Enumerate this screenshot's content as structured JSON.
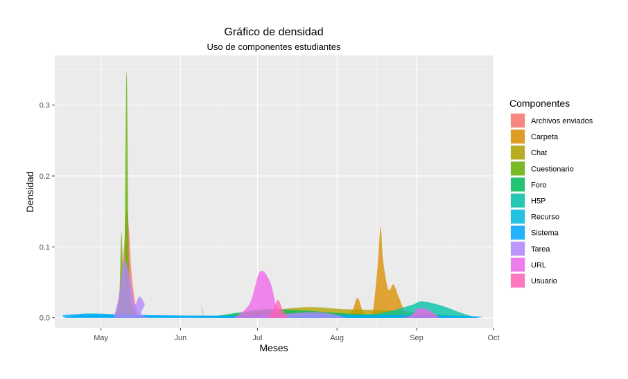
{
  "chart_data": {
    "type": "area",
    "title": "Gráfico de densidad",
    "subtitle": "Uso de componentes estudiantes",
    "xlabel": "Meses",
    "ylabel": "Densidad",
    "x_ticks": [
      "May",
      "Jun",
      "Jul",
      "Aug",
      "Sep",
      "Oct"
    ],
    "y_ticks": [
      "0.0",
      "0.1",
      "0.2",
      "0.3"
    ],
    "xlim": [
      "2020-04-13",
      "2020-10-01"
    ],
    "ylim": [
      -0.014,
      0.37
    ],
    "grid": true,
    "legend": {
      "title": "Componentes",
      "placement": "right"
    },
    "series": [
      {
        "name": "Archivos enviados",
        "color": "#F8766D",
        "points": [
          [
            "2020-05-06",
            0
          ],
          [
            "2020-05-08",
            0.03
          ],
          [
            "2020-05-10",
            0.1
          ],
          [
            "2020-05-11",
            0.15
          ],
          [
            "2020-05-12",
            0.12
          ],
          [
            "2020-05-13",
            0.06
          ],
          [
            "2020-05-15",
            0.01
          ],
          [
            "2020-05-18",
            0
          ]
        ]
      },
      {
        "name": "Carpeta",
        "color": "#DB8E00",
        "points": [
          [
            "2020-08-05",
            0
          ],
          [
            "2020-08-07",
            0.01
          ],
          [
            "2020-08-09",
            0.028
          ],
          [
            "2020-08-11",
            0.01
          ],
          [
            "2020-08-13",
            0
          ],
          [
            "2020-08-15",
            0.01
          ],
          [
            "2020-08-17",
            0.08
          ],
          [
            "2020-08-18",
            0.128
          ],
          [
            "2020-08-19",
            0.08
          ],
          [
            "2020-08-21",
            0.04
          ],
          [
            "2020-08-23",
            0.047
          ],
          [
            "2020-08-25",
            0.03
          ],
          [
            "2020-08-28",
            0.005
          ],
          [
            "2020-08-31",
            0
          ]
        ]
      },
      {
        "name": "Chat",
        "color": "#AEA200",
        "points": [
          [
            "2020-06-12",
            0
          ],
          [
            "2020-07-01",
            0.008
          ],
          [
            "2020-07-20",
            0.015
          ],
          [
            "2020-08-05",
            0.012
          ],
          [
            "2020-08-25",
            0.01
          ],
          [
            "2020-09-15",
            0.003
          ],
          [
            "2020-09-25",
            0
          ]
        ]
      },
      {
        "name": "Cuestionario",
        "color": "#64B200",
        "points": [
          [
            "2020-05-06",
            0
          ],
          [
            "2020-05-08",
            0.02
          ],
          [
            "2020-05-09",
            0.12
          ],
          [
            "2020-05-10",
            0.04
          ],
          [
            "2020-05-11",
            0.347
          ],
          [
            "2020-05-12",
            0.06
          ],
          [
            "2020-05-14",
            0.01
          ],
          [
            "2020-05-18",
            0
          ],
          [
            "2020-06-08",
            0
          ],
          [
            "2020-06-09",
            0.018
          ],
          [
            "2020-06-10",
            0
          ]
        ]
      },
      {
        "name": "Foro",
        "color": "#00BD5C",
        "points": [
          [
            "2020-06-10",
            0
          ],
          [
            "2020-06-25",
            0.008
          ],
          [
            "2020-07-05",
            0.012
          ],
          [
            "2020-07-20",
            0.01
          ],
          [
            "2020-08-05",
            0.006
          ],
          [
            "2020-08-20",
            0.004
          ],
          [
            "2020-09-10",
            0
          ]
        ]
      },
      {
        "name": "H5P",
        "color": "#00C1A7",
        "points": [
          [
            "2020-08-05",
            0
          ],
          [
            "2020-08-20",
            0.008
          ],
          [
            "2020-08-30",
            0.018
          ],
          [
            "2020-09-03",
            0.023
          ],
          [
            "2020-09-10",
            0.018
          ],
          [
            "2020-09-20",
            0.005
          ],
          [
            "2020-09-25",
            0
          ]
        ]
      },
      {
        "name": "Recurso",
        "color": "#00BADE",
        "points": [
          [
            "2020-04-17",
            0
          ],
          [
            "2020-04-25",
            0.006
          ],
          [
            "2020-05-15",
            0.004
          ],
          [
            "2020-06-15",
            0.003
          ],
          [
            "2020-07-15",
            0.004
          ],
          [
            "2020-08-15",
            0.004
          ],
          [
            "2020-09-15",
            0.003
          ],
          [
            "2020-09-25",
            0
          ]
        ]
      },
      {
        "name": "Sistema",
        "color": "#00A6FF",
        "points": [
          [
            "2020-04-17",
            0
          ],
          [
            "2020-04-17",
            0.004
          ],
          [
            "2020-05-01",
            0.005
          ],
          [
            "2020-06-01",
            0.003
          ],
          [
            "2020-07-01",
            0.003
          ],
          [
            "2020-08-01",
            0.003
          ],
          [
            "2020-09-01",
            0.003
          ],
          [
            "2020-09-25",
            0.002
          ],
          [
            "2020-09-25",
            0
          ]
        ]
      },
      {
        "name": "Tarea",
        "color": "#B385FF",
        "points": [
          [
            "2020-05-06",
            0
          ],
          [
            "2020-05-08",
            0.03
          ],
          [
            "2020-05-10",
            0.08
          ],
          [
            "2020-05-12",
            0.06
          ],
          [
            "2020-05-14",
            0.02
          ],
          [
            "2020-05-16",
            0.03
          ],
          [
            "2020-05-18",
            0.02
          ],
          [
            "2020-05-20",
            0
          ],
          [
            "2020-06-25",
            0
          ],
          [
            "2020-07-10",
            0.005
          ],
          [
            "2020-07-25",
            0.008
          ],
          [
            "2020-08-05",
            0
          ]
        ]
      },
      {
        "name": "URL",
        "color": "#EF67EB",
        "points": [
          [
            "2020-06-22",
            0
          ],
          [
            "2020-06-28",
            0.02
          ],
          [
            "2020-07-02",
            0.065
          ],
          [
            "2020-07-06",
            0.05
          ],
          [
            "2020-07-09",
            0.01
          ],
          [
            "2020-07-14",
            0
          ],
          [
            "2020-08-25",
            0
          ],
          [
            "2020-09-01",
            0.012
          ],
          [
            "2020-09-05",
            0.012
          ],
          [
            "2020-09-10",
            0
          ]
        ]
      },
      {
        "name": "Usuario",
        "color": "#FF63B6",
        "points": [
          [
            "2020-07-05",
            0
          ],
          [
            "2020-07-07",
            0.01
          ],
          [
            "2020-07-09",
            0.025
          ],
          [
            "2020-07-11",
            0.01
          ],
          [
            "2020-07-13",
            0
          ]
        ]
      }
    ]
  }
}
